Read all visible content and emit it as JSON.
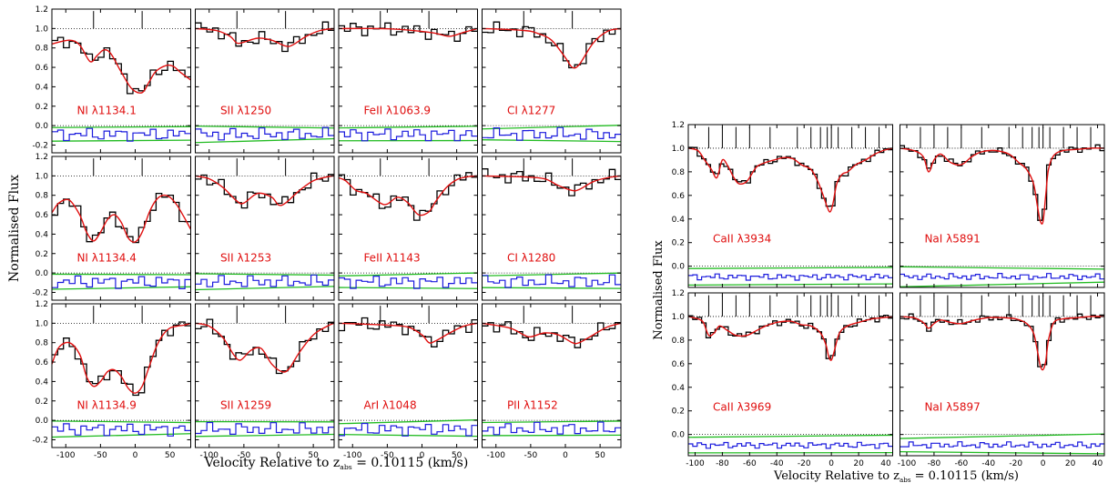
{
  "chart_data": [
    {
      "type": "line",
      "ylabel": "Normalised Flux",
      "xlabel_prefix": "Velocity Relative to z",
      "xlabel_sub": "abs",
      "xlabel_suffix": " = 0.10115 (km/s)",
      "xlim": [
        -120,
        80
      ],
      "ylim": [
        -0.28,
        1.2
      ],
      "yticks": [
        -0.2,
        0.0,
        0.2,
        0.4,
        0.6,
        0.8,
        1.0,
        1.2
      ],
      "xticks": [
        -100,
        -50,
        0,
        50
      ],
      "grid": false,
      "components_kms": [
        -60,
        10
      ],
      "panels": [
        {
          "label": "NI λ1134.1",
          "model_x": [
            -120,
            -95,
            -80,
            -65,
            -55,
            -45,
            -35,
            -20,
            -5,
            10,
            20,
            30,
            45,
            55,
            65,
            80
          ],
          "model_y": [
            0.84,
            0.88,
            0.83,
            0.66,
            0.72,
            0.78,
            0.74,
            0.55,
            0.38,
            0.34,
            0.45,
            0.56,
            0.62,
            0.61,
            0.55,
            0.47
          ]
        },
        {
          "label": "SII λ1250",
          "model_x": [
            -120,
            -90,
            -70,
            -60,
            -50,
            -30,
            -10,
            10,
            20,
            40,
            60,
            80
          ],
          "model_y": [
            1.0,
            0.98,
            0.92,
            0.85,
            0.86,
            0.9,
            0.88,
            0.82,
            0.83,
            0.92,
            0.98,
            1.0
          ]
        },
        {
          "label": "FeII λ1063.9",
          "model_x": [
            -120,
            -60,
            -30,
            0,
            20,
            40,
            60,
            80
          ],
          "model_y": [
            1.0,
            1.0,
            0.99,
            0.97,
            0.95,
            0.92,
            0.96,
            1.0
          ]
        },
        {
          "label": "CI λ1277",
          "model_x": [
            -120,
            -60,
            -40,
            -20,
            0,
            10,
            20,
            40,
            60,
            80
          ],
          "model_y": [
            1.0,
            0.98,
            0.95,
            0.88,
            0.7,
            0.6,
            0.63,
            0.85,
            0.97,
            1.0
          ]
        },
        {
          "label": "NI λ1134.4",
          "model_x": [
            -120,
            -110,
            -95,
            -80,
            -70,
            -60,
            -50,
            -40,
            -30,
            -20,
            -10,
            0,
            10,
            20,
            30,
            40,
            50,
            60,
            70,
            80
          ],
          "model_y": [
            0.62,
            0.72,
            0.75,
            0.6,
            0.42,
            0.33,
            0.42,
            0.55,
            0.6,
            0.52,
            0.36,
            0.32,
            0.42,
            0.62,
            0.75,
            0.8,
            0.78,
            0.7,
            0.58,
            0.45
          ]
        },
        {
          "label": "SII λ1253",
          "model_x": [
            -120,
            -100,
            -80,
            -60,
            -50,
            -30,
            -10,
            0,
            10,
            30,
            50,
            70,
            80
          ],
          "model_y": [
            1.0,
            0.97,
            0.88,
            0.74,
            0.72,
            0.82,
            0.78,
            0.7,
            0.72,
            0.85,
            0.95,
            0.99,
            1.0
          ]
        },
        {
          "label": "FeII λ1143",
          "model_x": [
            -120,
            -110,
            -95,
            -80,
            -60,
            -50,
            -35,
            -20,
            -5,
            10,
            20,
            35,
            50,
            65,
            80
          ],
          "model_y": [
            0.98,
            0.95,
            0.85,
            0.82,
            0.72,
            0.71,
            0.78,
            0.72,
            0.6,
            0.63,
            0.74,
            0.88,
            0.96,
            0.99,
            1.0
          ]
        },
        {
          "label": "CI λ1280",
          "model_x": [
            -120,
            -60,
            -30,
            -10,
            10,
            20,
            40,
            60,
            80
          ],
          "model_y": [
            1.0,
            0.99,
            0.97,
            0.9,
            0.85,
            0.86,
            0.94,
            0.98,
            1.0
          ]
        },
        {
          "label": "NI λ1134.9",
          "model_x": [
            -120,
            -110,
            -95,
            -80,
            -70,
            -60,
            -50,
            -40,
            -30,
            -20,
            -10,
            0,
            10,
            20,
            30,
            40,
            50,
            60,
            70,
            80
          ],
          "model_y": [
            0.58,
            0.75,
            0.8,
            0.68,
            0.45,
            0.35,
            0.4,
            0.5,
            0.52,
            0.45,
            0.33,
            0.28,
            0.35,
            0.55,
            0.75,
            0.88,
            0.95,
            0.97,
            0.98,
            1.0
          ]
        },
        {
          "label": "SII λ1259",
          "model_x": [
            -120,
            -100,
            -80,
            -65,
            -55,
            -40,
            -25,
            -10,
            5,
            15,
            30,
            50,
            70,
            80
          ],
          "model_y": [
            1.0,
            0.97,
            0.85,
            0.68,
            0.62,
            0.72,
            0.74,
            0.58,
            0.5,
            0.53,
            0.7,
            0.88,
            0.97,
            1.0
          ]
        },
        {
          "label": "ArI λ1048",
          "model_x": [
            -120,
            -80,
            -50,
            -20,
            0,
            10,
            20,
            40,
            60,
            80
          ],
          "model_y": [
            1.0,
            0.99,
            0.98,
            0.96,
            0.88,
            0.8,
            0.82,
            0.9,
            0.97,
            1.0
          ]
        },
        {
          "label": "PII λ1152",
          "model_x": [
            -120,
            -80,
            -60,
            -50,
            -30,
            -10,
            10,
            20,
            40,
            60,
            80
          ],
          "model_y": [
            1.0,
            0.95,
            0.88,
            0.86,
            0.9,
            0.88,
            0.8,
            0.8,
            0.88,
            0.96,
            1.0
          ]
        }
      ]
    },
    {
      "type": "line",
      "ylabel": "Normalised Flux",
      "xlabel_prefix": "Velocity Relative to z",
      "xlabel_sub": "abs",
      "xlabel_suffix": " = 0.10115 (km/s)",
      "xlim": [
        -105,
        45
      ],
      "ylim": [
        -0.18,
        1.2
      ],
      "yticks": [
        -0.2,
        0.0,
        0.2,
        0.4,
        0.6,
        0.8,
        1.0,
        1.2
      ],
      "xticks": [
        -100,
        -80,
        -60,
        -40,
        -20,
        0,
        20,
        40
      ],
      "grid": false,
      "components_kms": [
        -90,
        -80,
        -70,
        -60,
        -45,
        -25,
        -15,
        -8,
        -3,
        0,
        5,
        15,
        25,
        35
      ],
      "panels": [
        {
          "label": "CaII λ3934",
          "model_x": [
            -105,
            -98,
            -93,
            -88,
            -84,
            -80,
            -76,
            -72,
            -68,
            -62,
            -55,
            -48,
            -42,
            -35,
            -28,
            -22,
            -15,
            -10,
            -6,
            -3,
            -1,
            1,
            4,
            8,
            12,
            18,
            25,
            32,
            38,
            45
          ],
          "model_y": [
            1.0,
            0.98,
            0.9,
            0.82,
            0.75,
            0.9,
            0.85,
            0.76,
            0.7,
            0.72,
            0.84,
            0.88,
            0.9,
            0.92,
            0.91,
            0.86,
            0.82,
            0.72,
            0.6,
            0.5,
            0.46,
            0.52,
            0.7,
            0.78,
            0.8,
            0.86,
            0.9,
            0.95,
            0.98,
            1.0
          ]
        },
        {
          "label": "NaI λ5891",
          "model_x": [
            -105,
            -95,
            -88,
            -84,
            -80,
            -75,
            -68,
            -60,
            -52,
            -45,
            -35,
            -25,
            -18,
            -12,
            -7,
            -4,
            -2,
            0,
            2,
            4,
            8,
            15,
            25,
            35,
            45
          ],
          "model_y": [
            1.0,
            0.98,
            0.93,
            0.8,
            0.9,
            0.95,
            0.88,
            0.86,
            0.93,
            0.97,
            0.98,
            0.95,
            0.88,
            0.82,
            0.7,
            0.5,
            0.38,
            0.38,
            0.6,
            0.82,
            0.94,
            0.98,
            0.99,
            1.0,
            1.0
          ]
        },
        {
          "label": "CaII λ3969",
          "model_x": [
            -105,
            -98,
            -94,
            -90,
            -86,
            -82,
            -76,
            -70,
            -62,
            -55,
            -48,
            -40,
            -30,
            -22,
            -15,
            -8,
            -4,
            -2,
            0,
            2,
            6,
            12,
            20,
            30,
            38,
            45
          ],
          "model_y": [
            1.0,
            0.98,
            0.95,
            0.84,
            0.86,
            0.92,
            0.88,
            0.84,
            0.84,
            0.88,
            0.92,
            0.95,
            0.96,
            0.93,
            0.92,
            0.86,
            0.76,
            0.66,
            0.63,
            0.7,
            0.86,
            0.92,
            0.95,
            0.98,
            0.99,
            1.0
          ]
        },
        {
          "label": "NaI λ5897",
          "model_x": [
            -105,
            -95,
            -88,
            -84,
            -80,
            -75,
            -68,
            -60,
            -50,
            -40,
            -30,
            -20,
            -12,
            -7,
            -4,
            -2,
            0,
            2,
            4,
            8,
            15,
            25,
            35,
            45
          ],
          "model_y": [
            1.0,
            0.99,
            0.95,
            0.9,
            0.94,
            0.97,
            0.95,
            0.94,
            0.97,
            0.99,
            0.99,
            0.98,
            0.94,
            0.86,
            0.7,
            0.58,
            0.55,
            0.62,
            0.8,
            0.95,
            0.98,
            0.99,
            1.0,
            1.0
          ]
        }
      ]
    }
  ]
}
